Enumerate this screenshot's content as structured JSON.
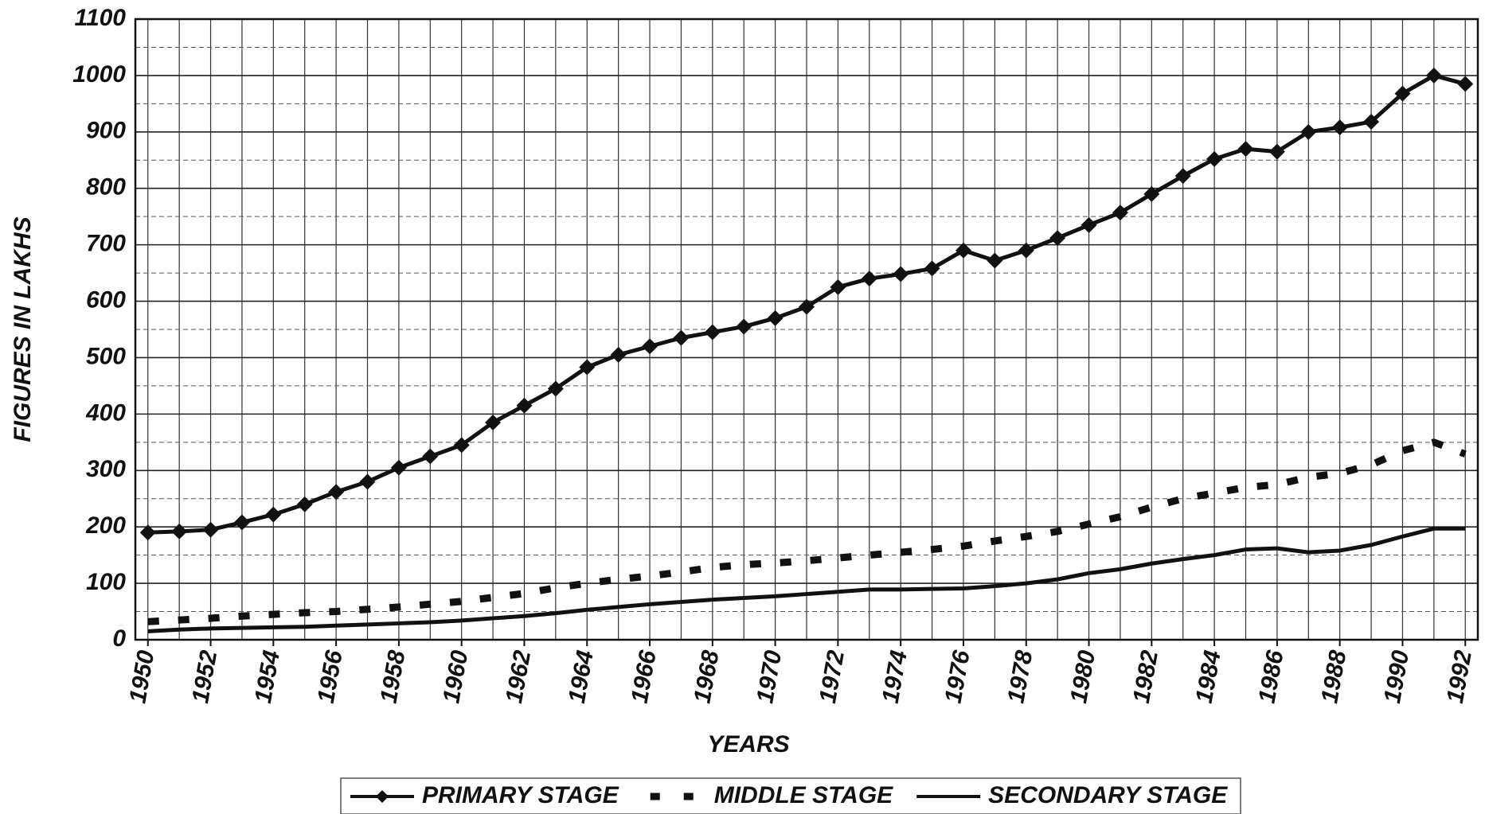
{
  "chart_data": {
    "type": "line",
    "x_label": "YEARS",
    "y_label": "FIGURES IN LAKHS",
    "x": [
      1950,
      1951,
      1952,
      1953,
      1954,
      1955,
      1956,
      1957,
      1958,
      1959,
      1960,
      1961,
      1962,
      1963,
      1964,
      1965,
      1966,
      1967,
      1968,
      1969,
      1970,
      1971,
      1972,
      1973,
      1974,
      1975,
      1976,
      1977,
      1978,
      1979,
      1980,
      1981,
      1982,
      1983,
      1984,
      1985,
      1986,
      1987,
      1988,
      1989,
      1990,
      1991,
      1992
    ],
    "series": [
      {
        "name": "PRIMARY STAGE",
        "color": "#111111",
        "marker": "diamond",
        "dash": false,
        "values": [
          190,
          192,
          195,
          208,
          222,
          240,
          262,
          280,
          305,
          325,
          345,
          385,
          415,
          445,
          483,
          505,
          520,
          535,
          545,
          555,
          570,
          590,
          625,
          640,
          648,
          658,
          690,
          672,
          690,
          712,
          735,
          757,
          790,
          822,
          852,
          870,
          865,
          900,
          908,
          918,
          968,
          1000,
          985
        ]
      },
      {
        "name": "MIDDLE STAGE",
        "color": "#111111",
        "marker": "none",
        "dash": true,
        "values": [
          32,
          35,
          38,
          42,
          45,
          48,
          50,
          54,
          58,
          63,
          68,
          75,
          82,
          92,
          100,
          107,
          113,
          120,
          128,
          133,
          136,
          140,
          145,
          150,
          155,
          160,
          166,
          175,
          183,
          192,
          205,
          218,
          235,
          250,
          260,
          270,
          275,
          288,
          295,
          310,
          335,
          350,
          329
        ]
      },
      {
        "name": "SECONDARY STAGE",
        "color": "#111111",
        "marker": "none",
        "dash": false,
        "values": [
          15,
          18,
          20,
          21,
          22,
          23,
          25,
          27,
          29,
          31,
          34,
          38,
          42,
          47,
          53,
          58,
          63,
          67,
          71,
          74,
          77,
          81,
          85,
          89,
          89,
          90,
          91,
          95,
          100,
          107,
          118,
          125,
          135,
          143,
          150,
          160,
          162,
          155,
          158,
          168,
          183,
          197,
          197
        ]
      }
    ],
    "xlim": [
      1949.6,
      1992.4
    ],
    "xticks": [
      1950,
      1952,
      1954,
      1956,
      1958,
      1960,
      1962,
      1964,
      1966,
      1968,
      1970,
      1972,
      1974,
      1976,
      1978,
      1980,
      1982,
      1984,
      1986,
      1988,
      1990,
      1992
    ],
    "ylim": [
      0,
      1100
    ],
    "yticks": [
      0,
      100,
      200,
      300,
      400,
      500,
      600,
      700,
      800,
      900,
      1000,
      1100
    ],
    "grid": true,
    "legend": "bottom"
  }
}
